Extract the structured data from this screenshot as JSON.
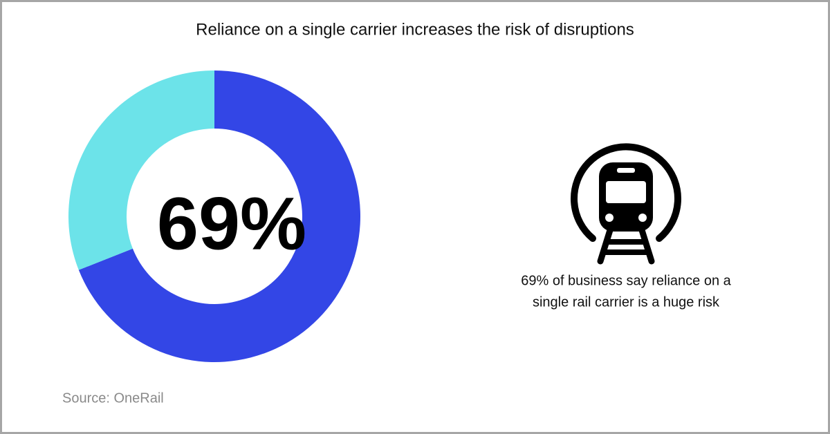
{
  "chart_data": {
    "type": "donut",
    "title": "Reliance on a single carrier increases the risk of disruptions",
    "values": [
      69,
      31
    ],
    "value_labels": [
      "69%",
      null
    ],
    "colors": [
      "#3346e6",
      "#6ce3e9"
    ],
    "caption": [
      "69% of business say reliance on a",
      "single rail carrier is a huge risk"
    ],
    "source": "Source: OneRail"
  }
}
